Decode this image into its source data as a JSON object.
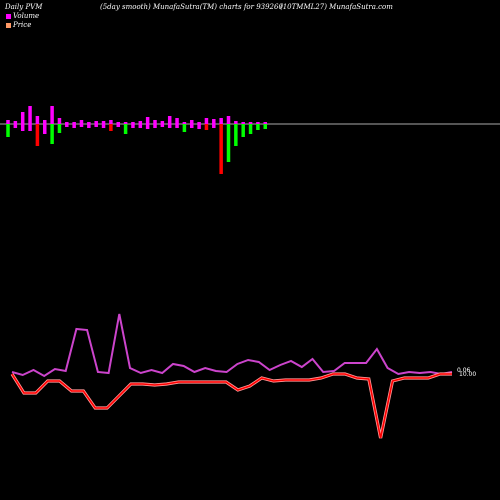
{
  "header": {
    "left": "Daily PVM",
    "middle": "(5day smooth) MunafaSutra(TM) charts for 939260",
    "right": "(10TMML27) MunafaSutra.com"
  },
  "legend": [
    {
      "label": "Volume",
      "color": "#ff00ff"
    },
    {
      "label": "Price",
      "color": "#ff9966"
    }
  ],
  "colors": {
    "up": "#ff00ff",
    "down": "#ff0000",
    "gain": "#00ff00",
    "price": "#ff0000",
    "volume_line": "#cc44cc",
    "baseline": "#aaaaaa"
  },
  "chart_data": {
    "type": "bar",
    "volume_bars": [
      {
        "up": 4,
        "down": -13,
        "color": "gain"
      },
      {
        "up": 3,
        "down": -4,
        "color": "up"
      },
      {
        "up": 12,
        "down": -7,
        "color": "up"
      },
      {
        "up": 18,
        "down": -7,
        "color": "up"
      },
      {
        "up": 8,
        "down": -22,
        "color": "down"
      },
      {
        "up": 4,
        "down": -10,
        "color": "up"
      },
      {
        "up": 18,
        "down": -20,
        "color": "gain"
      },
      {
        "up": 6,
        "down": -9,
        "color": "gain"
      },
      {
        "up": 2,
        "down": -3,
        "color": "up"
      },
      {
        "up": 2,
        "down": -4,
        "color": "up"
      },
      {
        "up": 4,
        "down": -3,
        "color": "up"
      },
      {
        "up": 2,
        "down": -4,
        "color": "up"
      },
      {
        "up": 3,
        "down": -3,
        "color": "up"
      },
      {
        "up": 3,
        "down": -4,
        "color": "up"
      },
      {
        "up": 4,
        "down": -7,
        "color": "down"
      },
      {
        "up": 2,
        "down": -3,
        "color": "up"
      },
      {
        "up": 2,
        "down": -10,
        "color": "gain"
      },
      {
        "up": 2,
        "down": -4,
        "color": "up"
      },
      {
        "up": 3,
        "down": -4,
        "color": "up"
      },
      {
        "up": 7,
        "down": -5,
        "color": "up"
      },
      {
        "up": 4,
        "down": -4,
        "color": "up"
      },
      {
        "up": 3,
        "down": -3,
        "color": "up"
      },
      {
        "up": 8,
        "down": -4,
        "color": "up"
      },
      {
        "up": 6,
        "down": -4,
        "color": "up"
      },
      {
        "up": 2,
        "down": -8,
        "color": "gain"
      },
      {
        "up": 4,
        "down": -4,
        "color": "up"
      },
      {
        "up": 2,
        "down": -5,
        "color": "up"
      },
      {
        "up": 6,
        "down": -6,
        "color": "down"
      },
      {
        "up": 5,
        "down": -4,
        "color": "up"
      },
      {
        "up": 6,
        "down": -50,
        "color": "down"
      },
      {
        "up": 8,
        "down": -38,
        "color": "gain"
      },
      {
        "up": 3,
        "down": -22,
        "color": "gain"
      },
      {
        "up": 2,
        "down": -13,
        "color": "gain"
      },
      {
        "up": 2,
        "down": -10,
        "color": "gain"
      },
      {
        "up": 2,
        "down": -6,
        "color": "gain"
      },
      {
        "up": 2,
        "down": -5,
        "color": "gain"
      }
    ],
    "volume_line": [
      372,
      375,
      370,
      376,
      369,
      371,
      329,
      330,
      372,
      373,
      314,
      368,
      373,
      370,
      373,
      364,
      366,
      372,
      368,
      371,
      372,
      364,
      360,
      362,
      370,
      365,
      361,
      367,
      359,
      372,
      371,
      363,
      363,
      363,
      349,
      368,
      374,
      372,
      373,
      372,
      374,
      372
    ],
    "price_line": [
      374,
      393,
      393,
      381,
      381,
      391,
      391,
      408,
      408,
      396,
      384,
      384,
      385,
      384,
      382,
      382,
      382,
      382,
      382,
      390,
      386,
      378,
      381,
      380,
      380,
      380,
      378,
      374,
      374,
      378,
      379,
      438,
      381,
      378,
      378,
      378,
      374,
      374
    ],
    "end_labels": [
      "0.06",
      "10.00"
    ]
  }
}
